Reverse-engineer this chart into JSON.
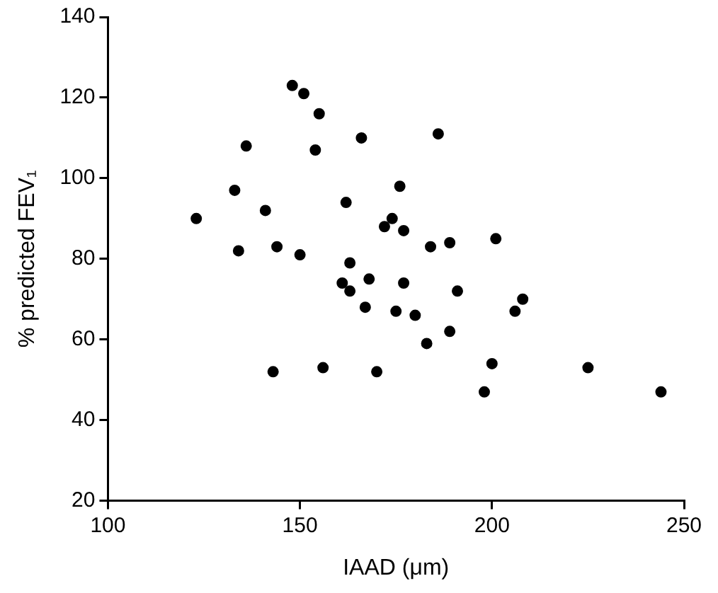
{
  "chart_data": {
    "type": "scatter",
    "xlabel": "IAAD (μm)",
    "ylabel": "% predicted FEV₁",
    "xlim": [
      100,
      250
    ],
    "xticks": [
      100,
      150,
      200,
      250
    ],
    "ylim": [
      20,
      140
    ],
    "yticks": [
      20,
      40,
      60,
      80,
      100,
      120,
      140
    ],
    "grid": false,
    "legend": false,
    "marker": "circle",
    "series": [
      {
        "color": "#000000",
        "x": [
          123,
          133,
          134,
          136,
          141,
          143,
          144,
          148,
          150,
          151,
          154,
          155,
          156,
          161,
          162,
          163,
          163,
          166,
          167,
          168,
          170,
          172,
          174,
          175,
          176,
          177,
          177,
          180,
          183,
          184,
          186,
          189,
          189,
          191,
          198,
          200,
          201,
          206,
          208,
          225,
          244
        ],
        "values": [
          90,
          97,
          82,
          108,
          92,
          52,
          83,
          123,
          81,
          121,
          107,
          116,
          53,
          74,
          94,
          79,
          72,
          110,
          68,
          75,
          52,
          88,
          90,
          67,
          98,
          87,
          74,
          66,
          59,
          83,
          111,
          84,
          62,
          72,
          47,
          54,
          85,
          67,
          70,
          53,
          47
        ]
      }
    ]
  }
}
